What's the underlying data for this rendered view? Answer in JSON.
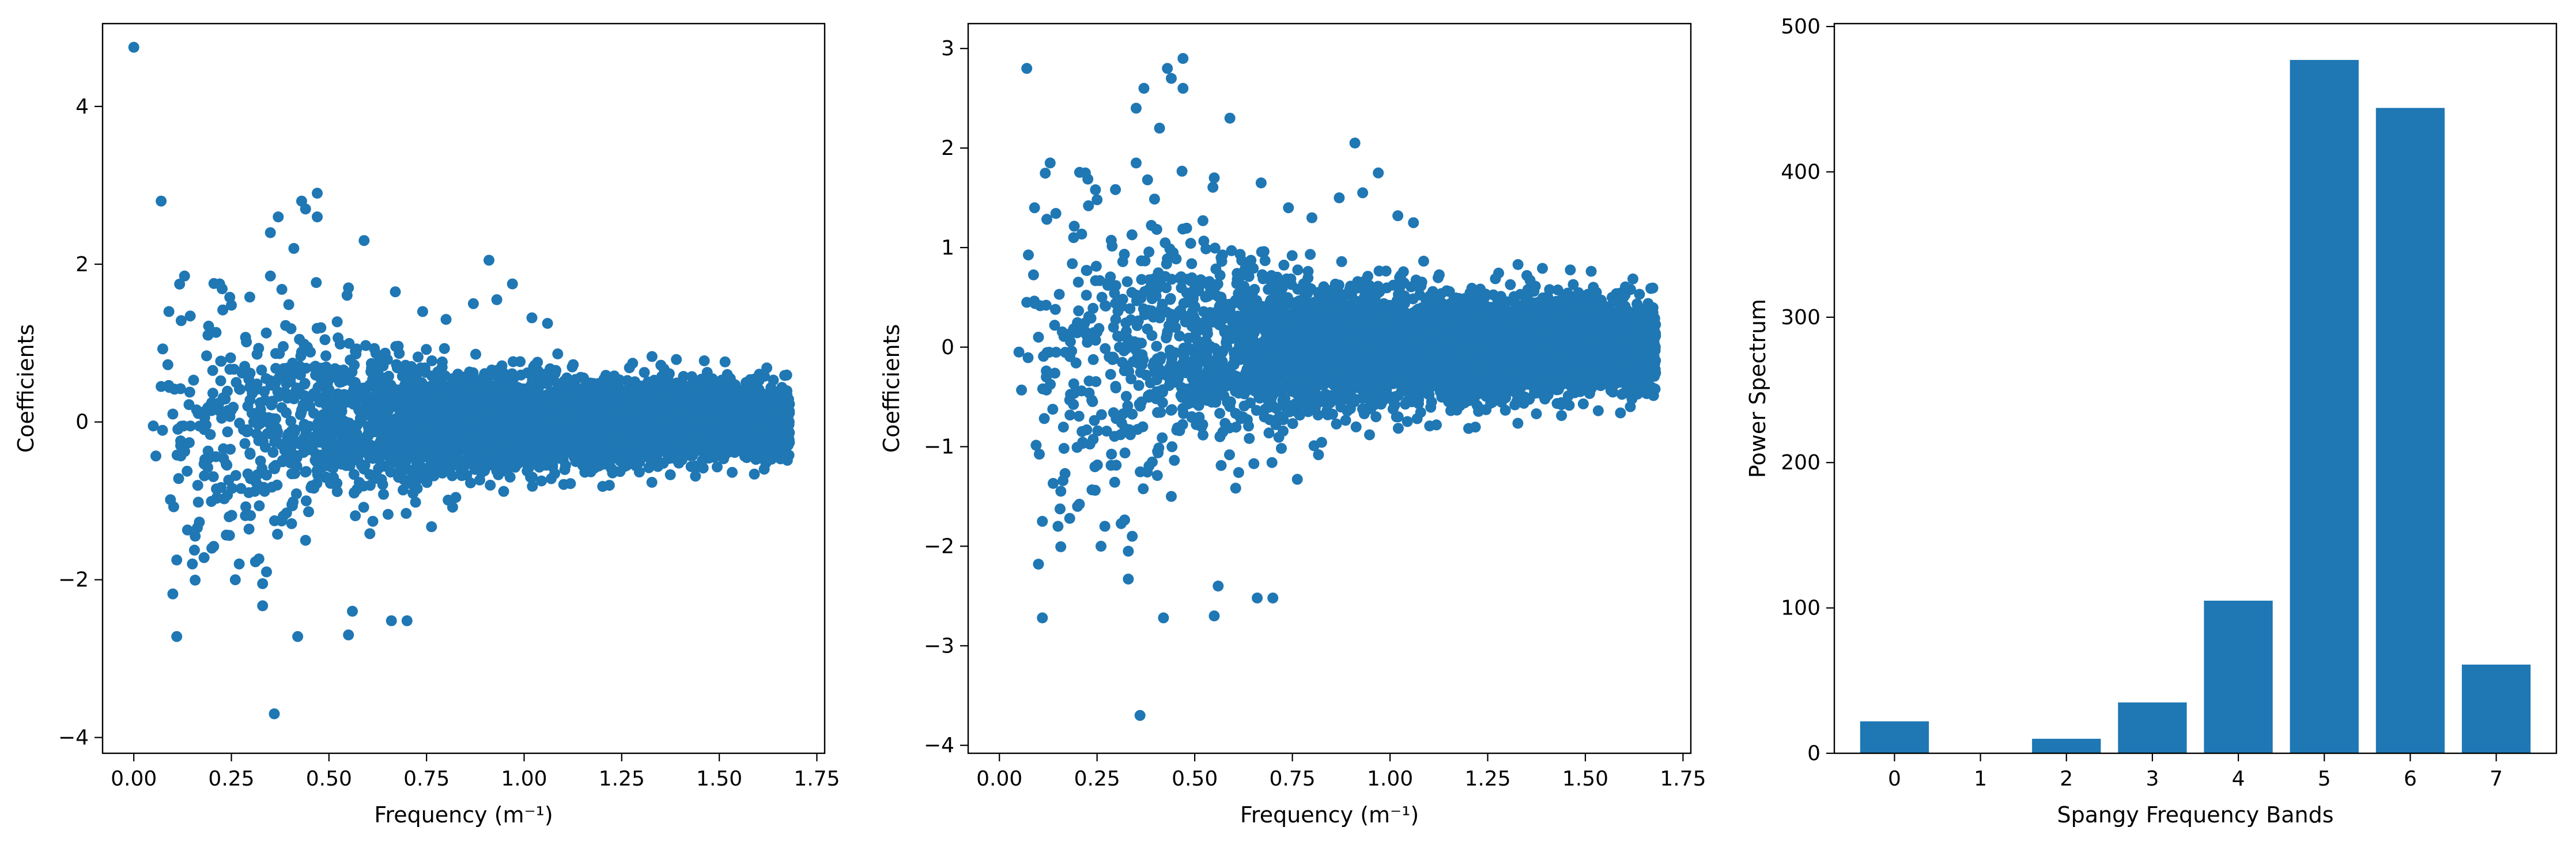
{
  "figure": {
    "background": "#ffffff",
    "accent": "#1f77b4"
  },
  "chart_data": [
    {
      "type": "scatter",
      "title": "",
      "xlabel": "Frequency (m⁻¹)",
      "ylabel": "Coefficients",
      "xlim": [
        -0.08,
        1.77
      ],
      "ylim": [
        -4.2,
        5.05
      ],
      "xticks": [
        0.0,
        0.25,
        0.5,
        0.75,
        1.0,
        1.25,
        1.5,
        1.75
      ],
      "xtick_labels": [
        "0.00",
        "0.25",
        "0.50",
        "0.75",
        "1.00",
        "1.25",
        "1.50",
        "1.75"
      ],
      "yticks": [
        -4,
        -2,
        0,
        2,
        4
      ],
      "ytick_labels": [
        "−4",
        "−2",
        "0",
        "2",
        "4"
      ],
      "color": "#1f77b4",
      "points": [
        [
          0.0,
          4.75
        ],
        [
          0.07,
          2.8
        ],
        [
          0.43,
          2.8
        ],
        [
          0.47,
          2.9
        ],
        [
          0.44,
          2.7
        ],
        [
          0.37,
          2.6
        ],
        [
          0.35,
          2.4
        ],
        [
          0.47,
          2.6
        ],
        [
          0.41,
          2.2
        ],
        [
          0.59,
          2.3
        ],
        [
          0.91,
          2.05
        ],
        [
          0.36,
          -3.7
        ],
        [
          0.42,
          -2.72
        ],
        [
          0.55,
          -2.7
        ],
        [
          0.11,
          -2.72
        ],
        [
          0.66,
          -2.52
        ],
        [
          0.7,
          -2.52
        ],
        [
          0.1,
          -2.18
        ],
        [
          0.56,
          -2.4
        ],
        [
          0.33,
          -2.33
        ],
        [
          0.33,
          -2.05
        ],
        [
          0.34,
          -1.9
        ],
        [
          0.26,
          -2.0
        ],
        [
          0.11,
          -1.75
        ],
        [
          0.18,
          -1.72
        ],
        [
          0.15,
          -1.8
        ],
        [
          0.44,
          -1.5
        ],
        [
          0.27,
          -1.8
        ],
        [
          0.2,
          -1.6
        ],
        [
          0.09,
          1.4
        ],
        [
          0.13,
          1.85
        ],
        [
          0.22,
          1.75
        ],
        [
          0.35,
          1.85
        ],
        [
          0.25,
          1.48
        ],
        [
          0.19,
          1.1
        ],
        [
          0.07,
          0.45
        ],
        [
          0.1,
          0.1
        ],
        [
          0.05,
          -0.05
        ],
        [
          0.12,
          -0.3
        ],
        [
          0.97,
          1.75
        ],
        [
          0.74,
          1.4
        ],
        [
          0.67,
          1.65
        ],
        [
          0.55,
          1.7
        ],
        [
          0.87,
          1.5
        ],
        [
          0.8,
          1.3
        ],
        [
          1.06,
          1.25
        ],
        [
          1.02,
          1.32
        ],
        [
          0.93,
          1.55
        ]
      ],
      "cloud": {
        "n": 5200,
        "seed": 7,
        "freq_range": [
          0.05,
          1.68
        ],
        "note": "dense continuous band of coefficients centred on 0, spread narrowing with frequency"
      }
    },
    {
      "type": "scatter",
      "title": "",
      "xlabel": "Frequency (m⁻¹)",
      "ylabel": "Coefficients",
      "xlim": [
        -0.08,
        1.77
      ],
      "ylim": [
        -4.08,
        3.25
      ],
      "xticks": [
        0.0,
        0.25,
        0.5,
        0.75,
        1.0,
        1.25,
        1.5,
        1.75
      ],
      "xtick_labels": [
        "0.00",
        "0.25",
        "0.50",
        "0.75",
        "1.00",
        "1.25",
        "1.50",
        "1.75"
      ],
      "yticks": [
        -4,
        -3,
        -2,
        -1,
        0,
        1,
        2,
        3
      ],
      "ytick_labels": [
        "−4",
        "−3",
        "−2",
        "−1",
        "0",
        "1",
        "2",
        "3"
      ],
      "color": "#1f77b4",
      "points": [
        [
          0.07,
          2.8
        ],
        [
          0.43,
          2.8
        ],
        [
          0.47,
          2.9
        ],
        [
          0.44,
          2.7
        ],
        [
          0.37,
          2.6
        ],
        [
          0.35,
          2.4
        ],
        [
          0.47,
          2.6
        ],
        [
          0.41,
          2.2
        ],
        [
          0.59,
          2.3
        ],
        [
          0.91,
          2.05
        ],
        [
          0.36,
          -3.7
        ],
        [
          0.42,
          -2.72
        ],
        [
          0.55,
          -2.7
        ],
        [
          0.11,
          -2.72
        ],
        [
          0.66,
          -2.52
        ],
        [
          0.7,
          -2.52
        ],
        [
          0.1,
          -2.18
        ],
        [
          0.56,
          -2.4
        ],
        [
          0.33,
          -2.33
        ],
        [
          0.33,
          -2.05
        ],
        [
          0.34,
          -1.9
        ],
        [
          0.26,
          -2.0
        ],
        [
          0.11,
          -1.75
        ],
        [
          0.18,
          -1.72
        ],
        [
          0.15,
          -1.8
        ],
        [
          0.44,
          -1.5
        ],
        [
          0.27,
          -1.8
        ],
        [
          0.2,
          -1.6
        ],
        [
          0.09,
          1.4
        ],
        [
          0.13,
          1.85
        ],
        [
          0.22,
          1.75
        ],
        [
          0.35,
          1.85
        ],
        [
          0.25,
          1.48
        ],
        [
          0.19,
          1.1
        ],
        [
          0.07,
          0.45
        ],
        [
          0.1,
          0.1
        ],
        [
          0.05,
          -0.05
        ],
        [
          0.12,
          -0.3
        ],
        [
          0.97,
          1.75
        ],
        [
          0.74,
          1.4
        ],
        [
          0.67,
          1.65
        ],
        [
          0.55,
          1.7
        ],
        [
          0.87,
          1.5
        ],
        [
          0.8,
          1.3
        ],
        [
          1.06,
          1.25
        ],
        [
          1.02,
          1.32
        ],
        [
          0.93,
          1.55
        ]
      ],
      "cloud": {
        "n": 5200,
        "seed": 7,
        "freq_range": [
          0.05,
          1.68
        ],
        "note": "same coefficients as the first panel, without the 4.75 value at frequency 0"
      }
    },
    {
      "type": "bar",
      "title": "",
      "xlabel": "Spangy Frequency Bands",
      "ylabel": "Power Spectrum",
      "categories": [
        "0",
        "1",
        "2",
        "3",
        "4",
        "5",
        "6",
        "7"
      ],
      "values": [
        22,
        0,
        10,
        35,
        105,
        477,
        444,
        61
      ],
      "ylim": [
        0,
        502
      ],
      "yticks": [
        0,
        100,
        200,
        300,
        400,
        500
      ],
      "ytick_labels": [
        "0",
        "100",
        "200",
        "300",
        "400",
        "500"
      ],
      "bar_width": 0.8,
      "color": "#1f77b4"
    }
  ]
}
